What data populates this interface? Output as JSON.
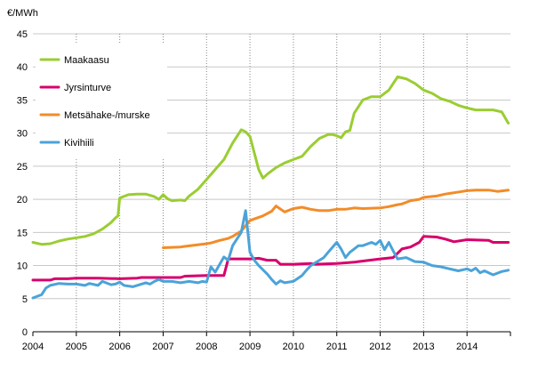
{
  "chart_data": {
    "type": "line",
    "title": "",
    "xlabel": "",
    "ylabel": "€/MWh",
    "ylim": [
      0,
      45
    ],
    "yticks": [
      0,
      5,
      10,
      15,
      20,
      25,
      30,
      35,
      40,
      45
    ],
    "xlim": [
      2004,
      2015
    ],
    "xtick_labels": [
      "2004",
      "2005",
      "2006",
      "2007",
      "2008",
      "2009",
      "2010",
      "2011",
      "2012",
      "2013",
      "2014"
    ],
    "grid": "horizontal solid, vertical dotted at years",
    "legend_position": "top-left",
    "series": [
      {
        "name": "Maakaasu",
        "color": "#9ACD32",
        "x": [
          2004.0,
          2004.2,
          2004.4,
          2004.6,
          2004.8,
          2005.0,
          2005.2,
          2005.4,
          2005.6,
          2005.8,
          2005.9,
          2005.96,
          2006.0,
          2006.2,
          2006.4,
          2006.6,
          2006.8,
          2006.9,
          2007.0,
          2007.1,
          2007.2,
          2007.4,
          2007.5,
          2007.6,
          2007.8,
          2008.0,
          2008.2,
          2008.4,
          2008.6,
          2008.8,
          2008.9,
          2009.0,
          2009.1,
          2009.2,
          2009.3,
          2009.4,
          2009.6,
          2009.8,
          2010.0,
          2010.2,
          2010.4,
          2010.6,
          2010.8,
          2010.9,
          2011.0,
          2011.1,
          2011.2,
          2011.3,
          2011.4,
          2011.6,
          2011.8,
          2012.0,
          2012.2,
          2012.3,
          2012.4,
          2012.6,
          2012.8,
          2013.0,
          2013.2,
          2013.4,
          2013.6,
          2013.8,
          2014.0,
          2014.2,
          2014.4,
          2014.6,
          2014.8,
          2014.95
        ],
        "values": [
          13.5,
          13.2,
          13.3,
          13.7,
          14.0,
          14.2,
          14.4,
          14.8,
          15.5,
          16.5,
          17.2,
          17.5,
          20.2,
          20.7,
          20.8,
          20.8,
          20.4,
          20.0,
          20.7,
          20.1,
          19.8,
          19.9,
          19.8,
          20.5,
          21.5,
          23.0,
          24.5,
          26.0,
          28.5,
          30.5,
          30.2,
          29.5,
          27.0,
          24.5,
          23.2,
          23.8,
          24.8,
          25.5,
          26.0,
          26.5,
          28.0,
          29.2,
          29.8,
          29.8,
          29.6,
          29.3,
          30.2,
          30.4,
          33.0,
          35.0,
          35.5,
          35.5,
          36.5,
          37.5,
          38.5,
          38.2,
          37.5,
          36.5,
          36.0,
          35.2,
          34.8,
          34.2,
          33.8,
          33.5,
          33.5,
          33.5,
          33.2,
          31.5
        ]
      },
      {
        "name": "Jyrsinturve",
        "color": "#D6006C",
        "x": [
          2004.0,
          2004.4,
          2004.5,
          2004.8,
          2005.0,
          2005.5,
          2006.0,
          2006.4,
          2006.5,
          2007.0,
          2007.4,
          2007.5,
          2008.0,
          2008.4,
          2008.5,
          2009.0,
          2009.2,
          2009.4,
          2009.6,
          2009.7,
          2010.0,
          2010.4,
          2010.5,
          2011.0,
          2011.4,
          2011.5,
          2012.0,
          2012.3,
          2012.5,
          2012.7,
          2012.9,
          2013.0,
          2013.3,
          2013.5,
          2013.7,
          2014.0,
          2014.5,
          2014.6,
          2014.95
        ],
        "values": [
          7.8,
          7.8,
          8.0,
          8.0,
          8.1,
          8.1,
          8.0,
          8.1,
          8.2,
          8.2,
          8.2,
          8.4,
          8.5,
          8.5,
          11.0,
          11.0,
          11.1,
          10.8,
          10.8,
          10.2,
          10.2,
          10.3,
          10.2,
          10.3,
          10.5,
          10.6,
          11.0,
          11.2,
          12.5,
          12.8,
          13.5,
          14.4,
          14.3,
          14.0,
          13.6,
          13.9,
          13.8,
          13.5,
          13.5
        ]
      },
      {
        "name": "Metsähake-/murske",
        "color": "#F28C28",
        "x": [
          2007.0,
          2007.4,
          2007.5,
          2008.0,
          2008.1,
          2008.3,
          2008.5,
          2008.6,
          2008.8,
          2009.0,
          2009.3,
          2009.5,
          2009.6,
          2009.8,
          2010.0,
          2010.2,
          2010.4,
          2010.6,
          2010.8,
          2011.0,
          2011.2,
          2011.4,
          2011.6,
          2012.0,
          2012.2,
          2012.4,
          2012.5,
          2012.7,
          2012.9,
          2013.0,
          2013.3,
          2013.5,
          2013.7,
          2013.9,
          2014.0,
          2014.2,
          2014.5,
          2014.7,
          2014.95
        ],
        "values": [
          12.7,
          12.8,
          12.9,
          13.3,
          13.4,
          13.8,
          14.1,
          14.4,
          15.2,
          16.8,
          17.5,
          18.2,
          19.0,
          18.1,
          18.6,
          18.8,
          18.5,
          18.3,
          18.3,
          18.5,
          18.5,
          18.7,
          18.6,
          18.7,
          18.9,
          19.2,
          19.3,
          19.8,
          20.0,
          20.3,
          20.5,
          20.8,
          21.0,
          21.2,
          21.3,
          21.4,
          21.4,
          21.2,
          21.4
        ]
      },
      {
        "name": "Kivihiili",
        "color": "#4BA3D9",
        "x": [
          2004.0,
          2004.2,
          2004.3,
          2004.4,
          2004.6,
          2004.8,
          2005.0,
          2005.2,
          2005.3,
          2005.5,
          2005.6,
          2005.8,
          2005.9,
          2006.0,
          2006.1,
          2006.3,
          2006.4,
          2006.6,
          2006.7,
          2006.8,
          2006.9,
          2007.0,
          2007.2,
          2007.4,
          2007.6,
          2007.8,
          2007.9,
          2008.0,
          2008.1,
          2008.2,
          2008.4,
          2008.5,
          2008.6,
          2008.7,
          2008.8,
          2008.9,
          2009.0,
          2009.1,
          2009.2,
          2009.4,
          2009.5,
          2009.6,
          2009.7,
          2009.8,
          2010.0,
          2010.2,
          2010.3,
          2010.4,
          2010.6,
          2010.7,
          2010.8,
          2011.0,
          2011.1,
          2011.2,
          2011.3,
          2011.4,
          2011.5,
          2011.6,
          2011.8,
          2011.9,
          2012.0,
          2012.1,
          2012.2,
          2012.3,
          2012.4,
          2012.6,
          2012.8,
          2013.0,
          2013.2,
          2013.4,
          2013.6,
          2013.8,
          2014.0,
          2014.1,
          2014.2,
          2014.3,
          2014.4,
          2014.6,
          2014.8,
          2014.95
        ],
        "values": [
          5.1,
          5.6,
          6.6,
          7.0,
          7.3,
          7.2,
          7.2,
          7.0,
          7.3,
          7.0,
          7.6,
          7.1,
          7.2,
          7.5,
          7.0,
          6.8,
          7.0,
          7.4,
          7.2,
          7.6,
          7.9,
          7.6,
          7.6,
          7.4,
          7.6,
          7.4,
          7.6,
          7.5,
          9.8,
          9.0,
          11.3,
          10.8,
          13.0,
          14.0,
          15.0,
          18.3,
          12.0,
          10.8,
          10.0,
          8.7,
          7.9,
          7.2,
          7.7,
          7.4,
          7.6,
          8.5,
          9.3,
          10.0,
          10.8,
          11.2,
          12.0,
          13.5,
          12.5,
          11.2,
          12.0,
          12.5,
          13.0,
          13.0,
          13.5,
          13.2,
          13.8,
          12.4,
          13.5,
          12.2,
          11.0,
          11.2,
          10.6,
          10.5,
          10.0,
          9.8,
          9.5,
          9.2,
          9.5,
          9.2,
          9.6,
          8.9,
          9.2,
          8.6,
          9.1,
          9.3
        ]
      }
    ]
  }
}
